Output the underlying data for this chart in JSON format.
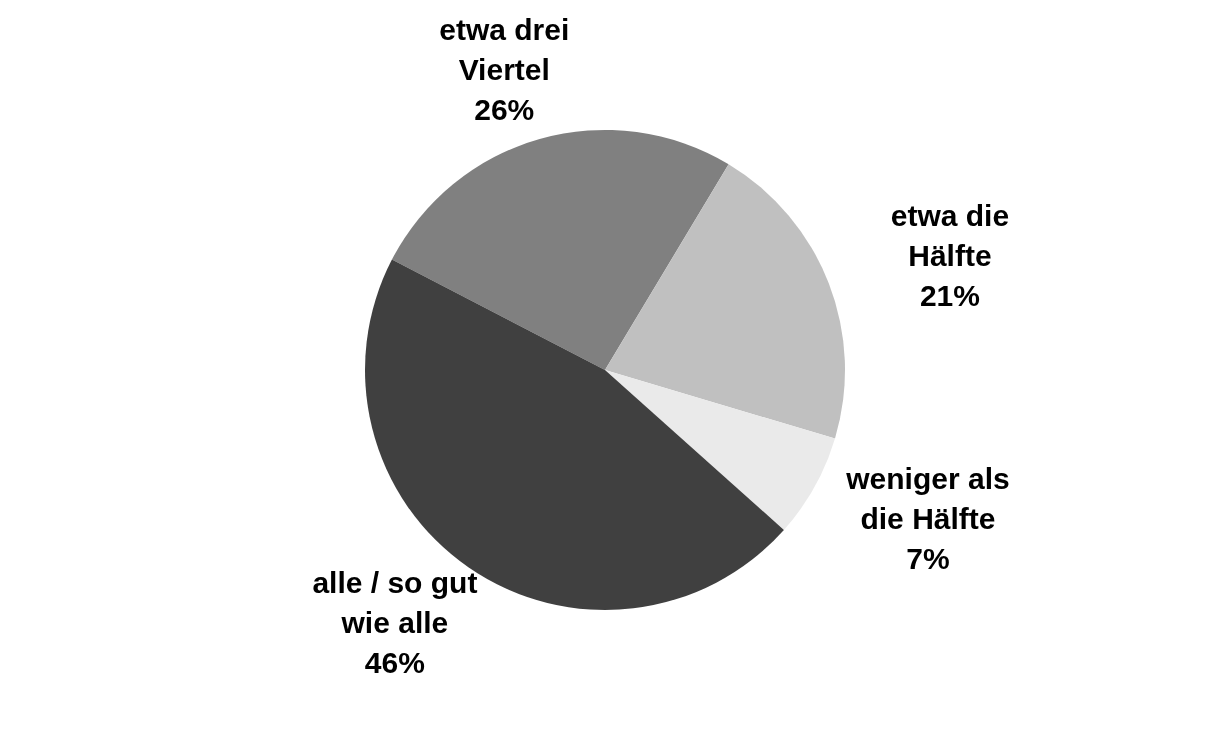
{
  "chart_data": {
    "type": "pie",
    "categories": [
      "etwa drei Viertel",
      "etwa die Hälfte",
      "weniger als die Hälfte",
      "alle / so gut wie alle"
    ],
    "values": [
      26,
      21,
      7,
      46
    ],
    "value_labels": [
      "26%",
      "21%",
      "7%",
      "46%"
    ],
    "data_labels": true,
    "colors": [
      "#808080",
      "#c0c0c0",
      "#eaeaea",
      "#404040"
    ]
  }
}
